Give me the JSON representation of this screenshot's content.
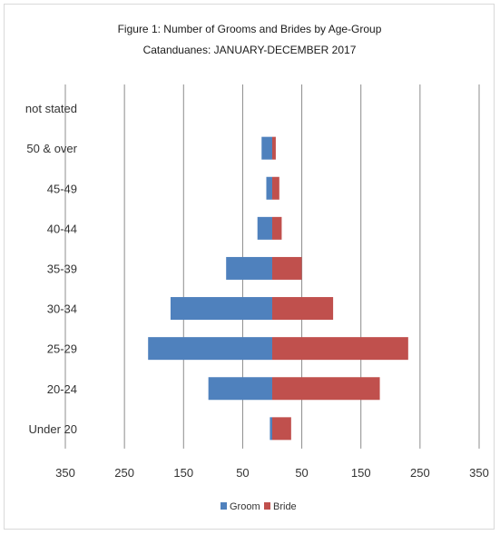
{
  "chart_data": {
    "type": "bar",
    "orientation": "horizontal",
    "layout": "population-pyramid",
    "title": "Figure 1: Number of Grooms and Brides by Age-Group",
    "subtitle": "Catanduanes: JANUARY-DECEMBER 2017",
    "categories": [
      "not stated",
      "50 & over",
      "45-49",
      "40-44",
      "35-39",
      "30-34",
      "25-29",
      "20-24",
      "Under 20"
    ],
    "series": [
      {
        "name": "Groom",
        "color": "#4f81bd",
        "side": "left",
        "values": [
          0,
          18,
          10,
          25,
          78,
          172,
          210,
          108,
          4
        ]
      },
      {
        "name": "Bride",
        "color": "#c0504d",
        "side": "right",
        "values": [
          0,
          6,
          12,
          16,
          50,
          103,
          230,
          182,
          32
        ]
      }
    ],
    "x_ticks": [
      "350",
      "250",
      "150",
      "50",
      "50",
      "150",
      "250",
      "350"
    ],
    "xlim": [
      -350,
      350
    ],
    "grid": "vertical",
    "legend": "bottom"
  }
}
